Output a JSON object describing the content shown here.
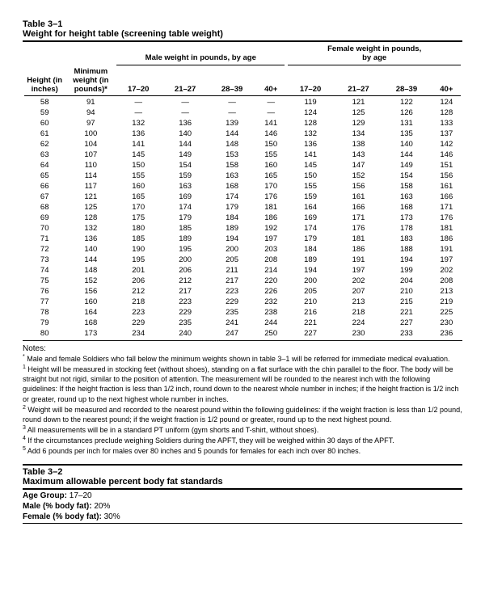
{
  "table1": {
    "label": "Table 3–1",
    "title": "Weight for height table (screening table weight)",
    "group_headers": {
      "male": "Male weight in pounds, by age",
      "female": "Female weight in pounds,\nby age"
    },
    "columns": {
      "height": "Height (in inches)",
      "minwt": "Minimum weight (in pounds)*",
      "age1": "17–20",
      "age2": "21–27",
      "age3": "28–39",
      "age4": "40+"
    },
    "rows": [
      {
        "h": "58",
        "m": "91",
        "m1": "—",
        "m2": "—",
        "m3": "—",
        "m4": "—",
        "f1": "119",
        "f2": "121",
        "f3": "122",
        "f4": "124"
      },
      {
        "h": "59",
        "m": "94",
        "m1": "—",
        "m2": "—",
        "m3": "—",
        "m4": "—",
        "f1": "124",
        "f2": "125",
        "f3": "126",
        "f4": "128"
      },
      {
        "h": "60",
        "m": "97",
        "m1": "132",
        "m2": "136",
        "m3": "139",
        "m4": "141",
        "f1": "128",
        "f2": "129",
        "f3": "131",
        "f4": "133"
      },
      {
        "h": "61",
        "m": "100",
        "m1": "136",
        "m2": "140",
        "m3": "144",
        "m4": "146",
        "f1": "132",
        "f2": "134",
        "f3": "135",
        "f4": "137"
      },
      {
        "h": "62",
        "m": "104",
        "m1": "141",
        "m2": "144",
        "m3": "148",
        "m4": "150",
        "f1": "136",
        "f2": "138",
        "f3": "140",
        "f4": "142"
      },
      {
        "h": "63",
        "m": "107",
        "m1": "145",
        "m2": "149",
        "m3": "153",
        "m4": "155",
        "f1": "141",
        "f2": "143",
        "f3": "144",
        "f4": "146"
      },
      {
        "h": "64",
        "m": "110",
        "m1": "150",
        "m2": "154",
        "m3": "158",
        "m4": "160",
        "f1": "145",
        "f2": "147",
        "f3": "149",
        "f4": "151"
      },
      {
        "h": "65",
        "m": "114",
        "m1": "155",
        "m2": "159",
        "m3": "163",
        "m4": "165",
        "f1": "150",
        "f2": "152",
        "f3": "154",
        "f4": "156"
      },
      {
        "h": "66",
        "m": "117",
        "m1": "160",
        "m2": "163",
        "m3": "168",
        "m4": "170",
        "f1": "155",
        "f2": "156",
        "f3": "158",
        "f4": "161"
      },
      {
        "h": "67",
        "m": "121",
        "m1": "165",
        "m2": "169",
        "m3": "174",
        "m4": "176",
        "f1": "159",
        "f2": "161",
        "f3": "163",
        "f4": "166"
      },
      {
        "h": "68",
        "m": "125",
        "m1": "170",
        "m2": "174",
        "m3": "179",
        "m4": "181",
        "f1": "164",
        "f2": "166",
        "f3": "168",
        "f4": "171"
      },
      {
        "h": "69",
        "m": "128",
        "m1": "175",
        "m2": "179",
        "m3": "184",
        "m4": "186",
        "f1": "169",
        "f2": "171",
        "f3": "173",
        "f4": "176"
      },
      {
        "h": "70",
        "m": "132",
        "m1": "180",
        "m2": "185",
        "m3": "189",
        "m4": "192",
        "f1": "174",
        "f2": "176",
        "f3": "178",
        "f4": "181"
      },
      {
        "h": "71",
        "m": "136",
        "m1": "185",
        "m2": "189",
        "m3": "194",
        "m4": "197",
        "f1": "179",
        "f2": "181",
        "f3": "183",
        "f4": "186"
      },
      {
        "h": "72",
        "m": "140",
        "m1": "190",
        "m2": "195",
        "m3": "200",
        "m4": "203",
        "f1": "184",
        "f2": "186",
        "f3": "188",
        "f4": "191"
      },
      {
        "h": "73",
        "m": "144",
        "m1": "195",
        "m2": "200",
        "m3": "205",
        "m4": "208",
        "f1": "189",
        "f2": "191",
        "f3": "194",
        "f4": "197"
      },
      {
        "h": "74",
        "m": "148",
        "m1": "201",
        "m2": "206",
        "m3": "211",
        "m4": "214",
        "f1": "194",
        "f2": "197",
        "f3": "199",
        "f4": "202"
      },
      {
        "h": "75",
        "m": "152",
        "m1": "206",
        "m2": "212",
        "m3": "217",
        "m4": "220",
        "f1": "200",
        "f2": "202",
        "f3": "204",
        "f4": "208"
      },
      {
        "h": "76",
        "m": "156",
        "m1": "212",
        "m2": "217",
        "m3": "223",
        "m4": "226",
        "f1": "205",
        "f2": "207",
        "f3": "210",
        "f4": "213"
      },
      {
        "h": "77",
        "m": "160",
        "m1": "218",
        "m2": "223",
        "m3": "229",
        "m4": "232",
        "f1": "210",
        "f2": "213",
        "f3": "215",
        "f4": "219"
      },
      {
        "h": "78",
        "m": "164",
        "m1": "223",
        "m2": "229",
        "m3": "235",
        "m4": "238",
        "f1": "216",
        "f2": "218",
        "f3": "221",
        "f4": "225"
      },
      {
        "h": "79",
        "m": "168",
        "m1": "229",
        "m2": "235",
        "m3": "241",
        "m4": "244",
        "f1": "221",
        "f2": "224",
        "f3": "227",
        "f4": "230"
      },
      {
        "h": "80",
        "m": "173",
        "m1": "234",
        "m2": "240",
        "m3": "247",
        "m4": "250",
        "f1": "227",
        "f2": "230",
        "f3": "233",
        "f4": "236"
      }
    ]
  },
  "notes": {
    "heading": "Notes:",
    "n1": "Male and female Soldiers who fall below the minimum weights shown in table 3–1 will be referred for immediate medical evaluation.",
    "n2": "Height will be measured in stocking feet (without shoes), standing on a flat surface with the chin parallel to the floor. The body will be straight but not rigid, similar to the position of attention. The measurement will be rounded to the nearest inch with the following guidelines: If the height fraction is less than 1/2 inch, round down to the nearest whole number in inches; if the height fraction is 1/2 inch or greater, round up to the next highest whole number in inches.",
    "n3": "Weight will be measured and recorded to the nearest pound within the following guidelines: if the weight fraction is less than 1/2 pound, round down to the nearest pound; if the weight fraction is 1/2 pound or greater, round up to the next highest pound.",
    "n4": "All measurements will be in a standard PT uniform (gym shorts and T-shirt, without shoes).",
    "n5": "If the circumstances preclude weighing Soldiers during the APFT, they will be weighed within 30 days of the APFT.",
    "n6": "Add 6 pounds per inch for males over 80 inches and 5 pounds for females for each inch over 80 inches."
  },
  "table2": {
    "label": "Table 3–2",
    "title": "Maximum allowable percent body fat standards",
    "age_label": "Age Group:",
    "age_value": "17–20",
    "male_label": "Male (% body fat):",
    "male_value": "20%",
    "female_label": "Female (% body fat):",
    "female_value": "30%"
  }
}
